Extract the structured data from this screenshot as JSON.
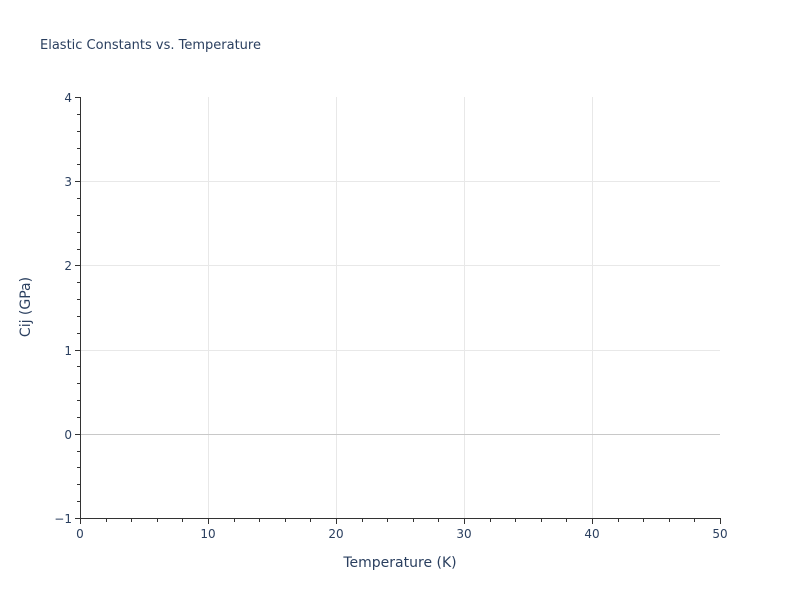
{
  "chart_data": {
    "type": "scatter",
    "title": "Elastic Constants vs. Temperature",
    "xlabel": "Temperature (K)",
    "ylabel": "Cij (GPa)",
    "xlim": [
      0,
      50
    ],
    "ylim": [
      -1,
      4
    ],
    "x_ticks": [
      0,
      10,
      20,
      30,
      40,
      50
    ],
    "y_ticks": [
      -1,
      0,
      1,
      2,
      3,
      4
    ],
    "x_minor_step": 2,
    "y_minor_step": 0.2,
    "grid": true,
    "zero_line_y": 0,
    "legend_position": "none",
    "series": []
  },
  "colors": {
    "text": "#2a3f5f",
    "axis": "#333333",
    "grid": "#e8e8e8",
    "zero_line": "#c8c8c8",
    "background": "#ffffff"
  }
}
